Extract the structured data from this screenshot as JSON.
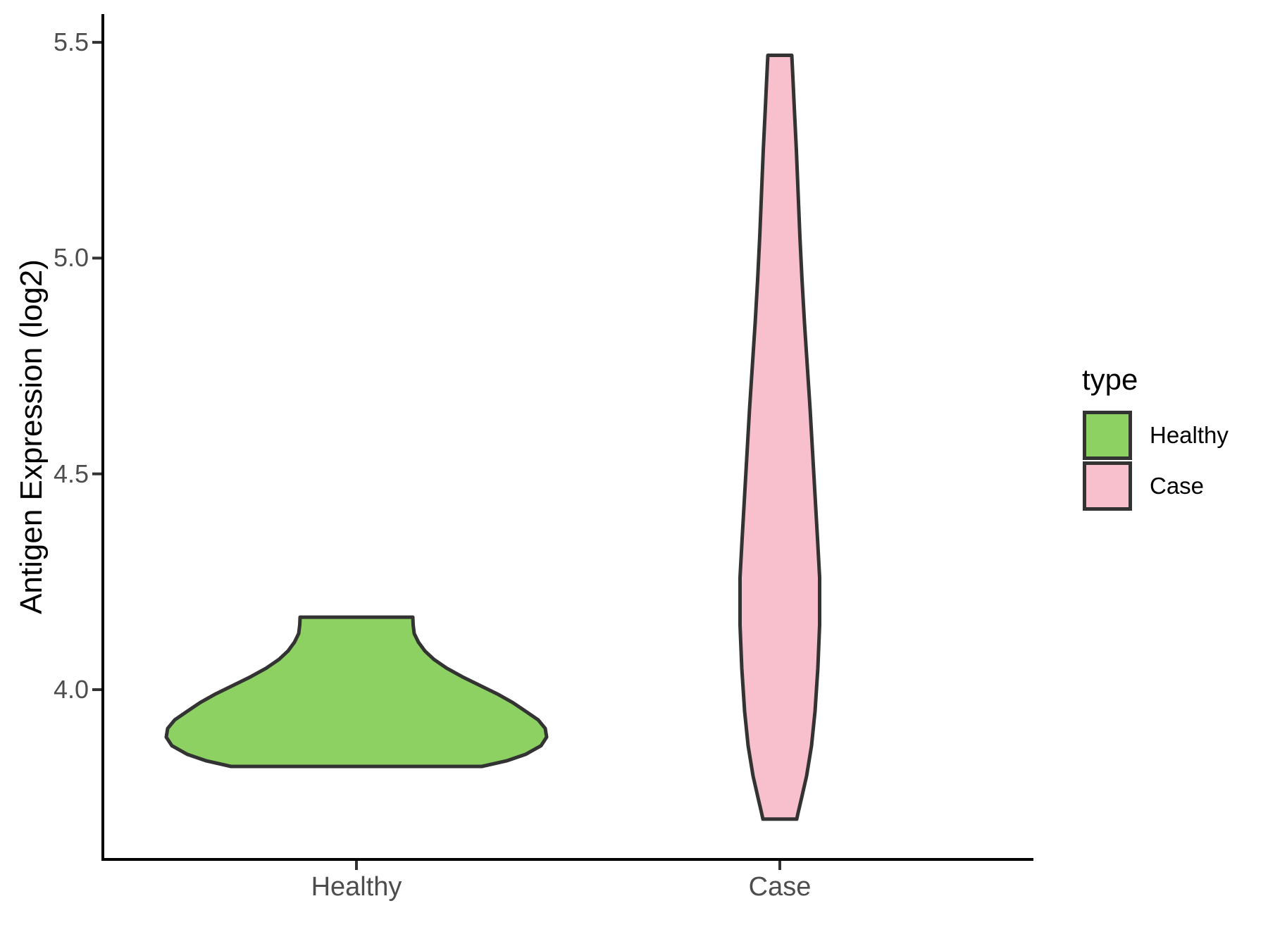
{
  "figure": {
    "background": "#ffffff"
  },
  "axes": {
    "line_color": "#000000",
    "line_width": 4,
    "tick_color": "#333333",
    "tick_width": 4,
    "tick_label_color": "#4D4D4D",
    "title_color": "#000000"
  },
  "chart_data": {
    "type": "violin",
    "title": "",
    "xlabel": "",
    "ylabel": "Antigen Expression (log2)",
    "categories": [
      "Healthy",
      "Case"
    ],
    "x_tick_labels": [
      "Healthy",
      "Case"
    ],
    "y_ticks": [
      {
        "value": 5.5,
        "label": "5.5"
      },
      {
        "value": 5.0,
        "label": "5.0"
      },
      {
        "value": 4.5,
        "label": "4.5"
      },
      {
        "value": 4.0,
        "label": "4.0"
      }
    ],
    "y_range_shown": [
      3.61,
      5.6
    ],
    "grid": false,
    "legend": {
      "title": "type",
      "position": "right",
      "entries": [
        {
          "label": "Healthy",
          "fill": "#8DD163"
        },
        {
          "label": "Case",
          "fill": "#F8C0CC"
        }
      ]
    },
    "series": [
      {
        "name": "Healthy",
        "fill": "#8DD163",
        "outline": "#333333",
        "outline_width": 5,
        "value_extent": [
          3.82,
          4.17
        ],
        "widest_at_value": 3.9,
        "profile_halfwidth_units": "px",
        "profile": [
          [
            4.168,
            80
          ],
          [
            4.15,
            80.5
          ],
          [
            4.13,
            82
          ],
          [
            4.11,
            88
          ],
          [
            4.09,
            97
          ],
          [
            4.07,
            110
          ],
          [
            4.05,
            128
          ],
          [
            4.03,
            150
          ],
          [
            4.01,
            175
          ],
          [
            3.99,
            200
          ],
          [
            3.97,
            222
          ],
          [
            3.95,
            240
          ],
          [
            3.93,
            258
          ],
          [
            3.91,
            268
          ],
          [
            3.89,
            270
          ],
          [
            3.87,
            262
          ],
          [
            3.85,
            240
          ],
          [
            3.835,
            213
          ],
          [
            3.822,
            178
          ]
        ]
      },
      {
        "name": "Case",
        "fill": "#F8C0CC",
        "outline": "#333333",
        "outline_width": 5,
        "value_extent": [
          3.7,
          5.47
        ],
        "widest_at_value": 4.26,
        "profile_halfwidth_units": "px",
        "profile": [
          [
            5.47,
            17
          ],
          [
            5.42,
            18.5
          ],
          [
            5.35,
            20.5
          ],
          [
            5.25,
            23.5
          ],
          [
            5.15,
            26
          ],
          [
            5.05,
            28.5
          ],
          [
            4.95,
            31.5
          ],
          [
            4.85,
            35
          ],
          [
            4.75,
            39
          ],
          [
            4.65,
            43
          ],
          [
            4.55,
            46.5
          ],
          [
            4.45,
            50
          ],
          [
            4.35,
            53.5
          ],
          [
            4.26,
            56.5
          ],
          [
            4.15,
            56.5
          ],
          [
            4.05,
            54
          ],
          [
            3.95,
            50
          ],
          [
            3.87,
            45
          ],
          [
            3.8,
            38
          ],
          [
            3.75,
            31
          ],
          [
            3.715,
            26
          ],
          [
            3.7,
            24
          ]
        ]
      }
    ]
  }
}
